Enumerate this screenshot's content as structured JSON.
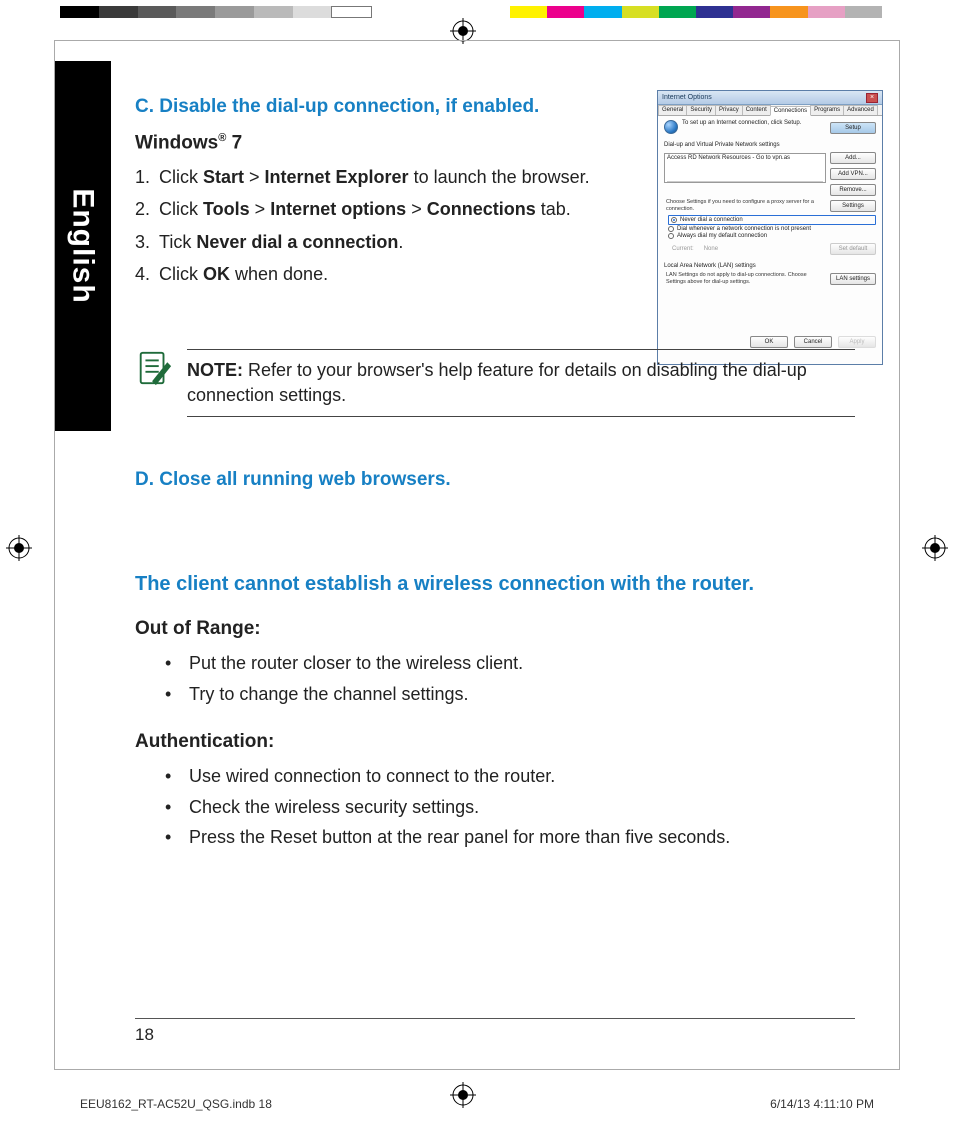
{
  "calibration": {
    "left_colors": [
      "#000000",
      "#3a3a3a",
      "#5a5a5a",
      "#7a7a7a",
      "#9a9a9a",
      "#bababa",
      "#dcdcdc",
      "#ffffff"
    ],
    "right_colors": [
      "#fff200",
      "#ec008c",
      "#00aeef",
      "#d7df23",
      "#00a651",
      "#2e3192",
      "#922790",
      "#f7941d",
      "#e6a0c4",
      "#b3b3b3"
    ]
  },
  "lang_tab": "English",
  "section_c": {
    "heading": "C.   Disable the dial-up connection, if enabled.",
    "platform_prefix": "Windows",
    "platform_suffix": " 7",
    "steps": [
      {
        "n": "1.",
        "segments": [
          [
            "",
            "Click "
          ],
          [
            "b",
            "Start"
          ],
          [
            "",
            " > "
          ],
          [
            "b",
            "Internet Explorer"
          ],
          [
            "",
            " to launch the browser."
          ]
        ]
      },
      {
        "n": "2.",
        "segments": [
          [
            "",
            "Click "
          ],
          [
            "b",
            "Tools"
          ],
          [
            "",
            " > "
          ],
          [
            "b",
            "Internet options"
          ],
          [
            "",
            " > "
          ],
          [
            "b",
            "Connections"
          ],
          [
            "",
            " tab."
          ]
        ]
      },
      {
        "n": "3.",
        "segments": [
          [
            "",
            "Tick "
          ],
          [
            "b",
            "Never dial a connection"
          ],
          [
            "",
            "."
          ]
        ]
      },
      {
        "n": "4.",
        "segments": [
          [
            "",
            "Click "
          ],
          [
            "b",
            "OK"
          ],
          [
            "",
            " when done."
          ]
        ]
      }
    ]
  },
  "dialog": {
    "title": "Internet Options",
    "tabs": [
      "General",
      "Security",
      "Privacy",
      "Content",
      "Connections",
      "Programs",
      "Advanced"
    ],
    "active_tab": 4,
    "setup_text": "To set up an Internet connection, click Setup.",
    "setup_btn": "Setup",
    "dialup_label": "Dial-up and Virtual Private Network settings",
    "list_item": "Access RD Network Resources - Go to vpn.as",
    "btn_add": "Add...",
    "btn_addvpn": "Add VPN...",
    "btn_remove": "Remove...",
    "proxy_text": "Choose Settings if you need to configure a proxy server for a connection.",
    "settings_btn": "Settings",
    "radio_never": "Never dial a connection",
    "radio_whenever": "Dial whenever a network connection is not present",
    "radio_always": "Always dial my default connection",
    "current_label": "Current:",
    "current_value": "None",
    "setdefault_btn": "Set default",
    "lan_label": "Local Area Network (LAN) settings",
    "lan_text": "LAN Settings do not apply to dial-up connections. Choose Settings above for dial-up settings.",
    "lan_btn": "LAN settings",
    "ok_btn": "OK",
    "cancel_btn": "Cancel",
    "apply_btn": "Apply"
  },
  "note": {
    "label": "NOTE:",
    "text": "    Refer to your browser's help feature for details on disabling the dial-up connection settings."
  },
  "section_d": {
    "heading": "D.   Close all running web browsers."
  },
  "wireless": {
    "heading": "The client cannot establish a wireless connection with the router.",
    "range_title": "Out of Range:",
    "range_items": [
      "Put the router closer to the wireless client.",
      "Try to change the channel settings."
    ],
    "auth_title": "Authentication:",
    "auth_items": [
      "Use wired connection to connect to the router.",
      "Check the wireless security settings.",
      "Press the Reset button at the rear panel for more than five seconds."
    ]
  },
  "page_number": "18",
  "print_footer": {
    "left": "EEU8162_RT-AC52U_QSG.indb   18",
    "right": "6/14/13   4:11:10 PM"
  }
}
